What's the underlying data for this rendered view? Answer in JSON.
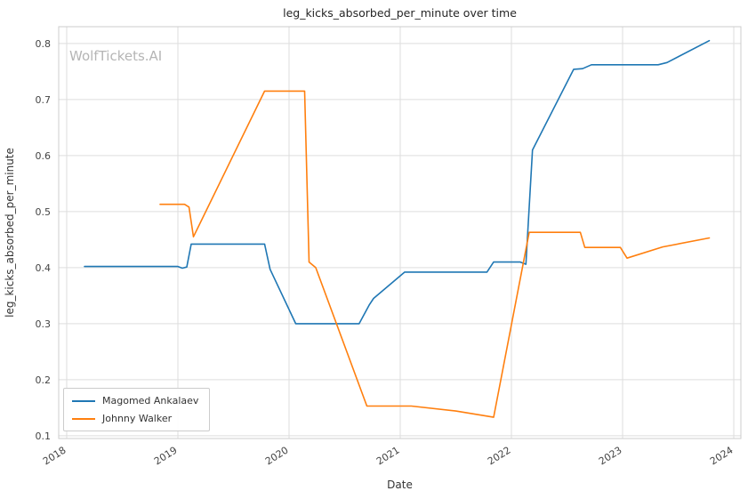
{
  "watermark": "WolfTickets.AI",
  "colors": {
    "series_blue": "#1f77b4",
    "series_orange": "#ff7f0e",
    "grid": "#dddddd",
    "spine": "#cccccc",
    "tick_text": "#444444",
    "title_text": "#262626",
    "watermark_text": "#b5b5b5"
  },
  "chart_data": {
    "type": "line",
    "title": "leg_kicks_absorbed_per_minute over time",
    "xlabel": "Date",
    "ylabel": "leg_kicks_absorbed_per_minute",
    "xlim": [
      2017.928,
      2024.064
    ],
    "ylim": [
      0.095,
      0.83
    ],
    "xticks": [
      2018,
      2019,
      2020,
      2021,
      2022,
      2023,
      2024
    ],
    "yticks": [
      0.1,
      0.2,
      0.3,
      0.4,
      0.5,
      0.6,
      0.7,
      0.8
    ],
    "grid": true,
    "legend_position": "lower left",
    "series": [
      {
        "name": "Magomed Ankalaev",
        "color": "#1f77b4",
        "x": [
          2018.16,
          2019.0,
          2019.04,
          2019.08,
          2019.12,
          2019.78,
          2019.83,
          2020.06,
          2020.63,
          2020.72,
          2020.76,
          2021.04,
          2021.78,
          2021.84,
          2022.08,
          2022.13,
          2022.19,
          2022.56,
          2022.64,
          2022.72,
          2023.32,
          2023.4,
          2023.78
        ],
        "y": [
          0.402,
          0.402,
          0.399,
          0.401,
          0.442,
          0.442,
          0.397,
          0.3,
          0.3,
          0.333,
          0.345,
          0.392,
          0.392,
          0.41,
          0.41,
          0.406,
          0.61,
          0.754,
          0.755,
          0.762,
          0.762,
          0.766,
          0.805
        ]
      },
      {
        "name": "Johnny Walker",
        "color": "#ff7f0e",
        "x": [
          2018.84,
          2019.06,
          2019.1,
          2019.14,
          2019.78,
          2020.14,
          2020.18,
          2020.24,
          2020.7,
          2021.1,
          2021.5,
          2021.78,
          2021.84,
          2022.16,
          2022.62,
          2022.66,
          2022.98,
          2023.04,
          2023.36,
          2023.78
        ],
        "y": [
          0.513,
          0.513,
          0.508,
          0.455,
          0.715,
          0.715,
          0.41,
          0.4,
          0.153,
          0.153,
          0.144,
          0.135,
          0.133,
          0.463,
          0.463,
          0.436,
          0.436,
          0.417,
          0.437,
          0.453
        ]
      }
    ]
  }
}
